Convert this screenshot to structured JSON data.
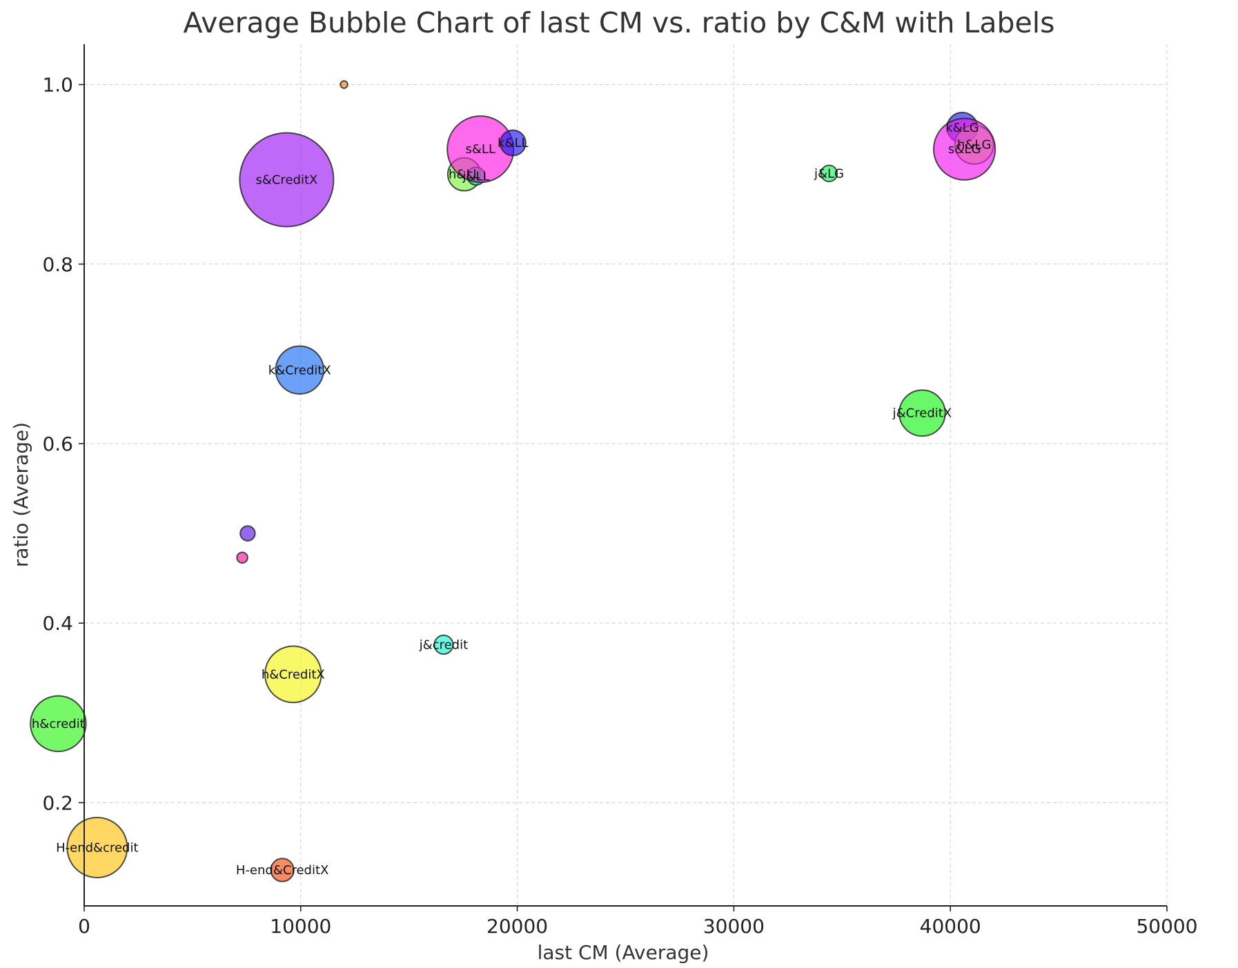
{
  "chart_data": {
    "type": "scatter",
    "subtype": "bubble",
    "title": "Average Bubble Chart of last CM vs. ratio by C&M with Labels",
    "xlabel": "last CM (Average)",
    "ylabel": "ratio (Average)",
    "xlim": [
      0,
      50000
    ],
    "ylim": [
      0.085,
      1.045
    ],
    "xticks": [
      0,
      10000,
      20000,
      30000,
      40000,
      50000
    ],
    "yticks": [
      0.2,
      0.4,
      0.6,
      0.8,
      1.0
    ],
    "xtick_labels": [
      "0",
      "10000",
      "20000",
      "30000",
      "40000",
      "50000"
    ],
    "ytick_labels": [
      "0.2",
      "0.4",
      "0.6",
      "0.8",
      "1.0"
    ],
    "grid": true,
    "legend": false,
    "bubble_alpha": 0.65,
    "points": [
      {
        "label": "s&CreditX",
        "x": 9350,
        "y": 0.894,
        "size": 1.0,
        "color": "#9b19f5"
      },
      {
        "label": "h&LL",
        "x": 17550,
        "y": 0.9,
        "size": 0.123,
        "color": "#7bf542"
      },
      {
        "label": "j&LL",
        "x": 18100,
        "y": 0.898,
        "size": 0.036,
        "color": "#00f5a0"
      },
      {
        "label": "s&LL",
        "x": 18300,
        "y": 0.928,
        "size": 0.5,
        "color": "#ff19e0"
      },
      {
        "label": "k&LL",
        "x": 19800,
        "y": 0.935,
        "size": 0.074,
        "color": "#2216f0"
      },
      {
        "label": "",
        "x": 12000,
        "y": 1.0,
        "size": 0.006,
        "color": "#f5820f"
      },
      {
        "label": "j&LG",
        "x": 34400,
        "y": 0.901,
        "size": 0.03,
        "color": "#19f560"
      },
      {
        "label": "k&LG",
        "x": 40550,
        "y": 0.952,
        "size": 0.105,
        "color": "#2222f0"
      },
      {
        "label": "h&LG",
        "x": 41100,
        "y": 0.933,
        "size": 0.17,
        "color": "#d0f540"
      },
      {
        "label": "s&LG",
        "x": 40650,
        "y": 0.928,
        "size": 0.43,
        "color": "#f019f0"
      },
      {
        "label": "k&CreditX",
        "x": 9950,
        "y": 0.682,
        "size": 0.26,
        "color": "#1c6ef5"
      },
      {
        "label": "j&CreditX",
        "x": 38700,
        "y": 0.634,
        "size": 0.24,
        "color": "#19f519"
      },
      {
        "label": "",
        "x": 7550,
        "y": 0.5,
        "size": 0.025,
        "color": "#5a19e6"
      },
      {
        "label": "",
        "x": 7300,
        "y": 0.473,
        "size": 0.013,
        "color": "#f01995"
      },
      {
        "label": "j&credit",
        "x": 16600,
        "y": 0.376,
        "size": 0.04,
        "color": "#19f5d2"
      },
      {
        "label": "h&CreditX",
        "x": 9650,
        "y": 0.343,
        "size": 0.36,
        "color": "#f5f519"
      },
      {
        "label": "h&credit",
        "x": -1200,
        "y": 0.288,
        "size": 0.35,
        "color": "#2df519"
      },
      {
        "label": "H-end&credit",
        "x": 600,
        "y": 0.15,
        "size": 0.41,
        "color": "#ffc30f"
      },
      {
        "label": "H-end&CreditX",
        "x": 9150,
        "y": 0.125,
        "size": 0.06,
        "color": "#f54d0f"
      }
    ]
  }
}
